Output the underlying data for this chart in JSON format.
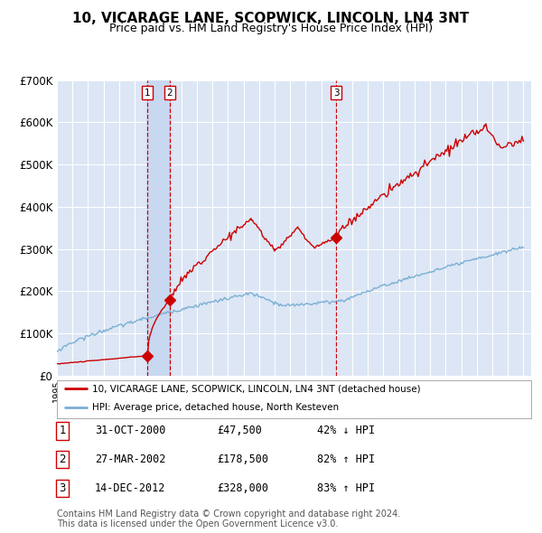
{
  "title": "10, VICARAGE LANE, SCOPWICK, LINCOLN, LN4 3NT",
  "subtitle": "Price paid vs. HM Land Registry's House Price Index (HPI)",
  "title_fontsize": 11,
  "subtitle_fontsize": 9,
  "ylim": [
    0,
    700000
  ],
  "yticks": [
    0,
    100000,
    200000,
    300000,
    400000,
    500000,
    600000,
    700000
  ],
  "ytick_labels": [
    "£0",
    "£100K",
    "£200K",
    "£300K",
    "£400K",
    "£500K",
    "£600K",
    "£700K"
  ],
  "xlim_start": 1995.0,
  "xlim_end": 2025.5,
  "background_color": "#ffffff",
  "plot_bg_color": "#dce6f5",
  "grid_color": "#ffffff",
  "red_line_color": "#cc0000",
  "blue_line_color": "#7bafd4",
  "sale_marker_color": "#cc0000",
  "vline_color": "#cc0000",
  "shade_color": "#c8d8f0",
  "sale1_x": 2000.83,
  "sale1_y": 47500,
  "sale2_x": 2002.24,
  "sale2_y": 178500,
  "sale3_x": 2012.96,
  "sale3_y": 328000,
  "legend_label_red": "10, VICARAGE LANE, SCOPWICK, LINCOLN, LN4 3NT (detached house)",
  "legend_label_blue": "HPI: Average price, detached house, North Kesteven",
  "table_data": [
    [
      "1",
      "31-OCT-2000",
      "£47,500",
      "42% ↓ HPI"
    ],
    [
      "2",
      "27-MAR-2002",
      "£178,500",
      "82% ↑ HPI"
    ],
    [
      "3",
      "14-DEC-2012",
      "£328,000",
      "83% ↑ HPI"
    ]
  ],
  "footer": "Contains HM Land Registry data © Crown copyright and database right 2024.\nThis data is licensed under the Open Government Licence v3.0.",
  "footer_fontsize": 7
}
